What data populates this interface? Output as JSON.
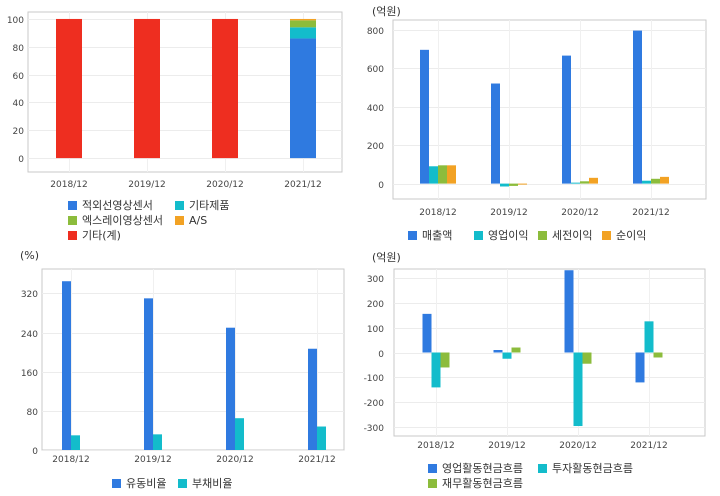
{
  "chart_data": [
    {
      "type": "bar",
      "stacked": true,
      "categories": [
        "2018/12",
        "2019/12",
        "2020/12",
        "2021/12"
      ],
      "ylim": [
        -10,
        105
      ],
      "yticks": [
        0,
        20,
        40,
        60,
        80,
        100
      ],
      "grid": true,
      "legend_position": "bottom",
      "series": [
        {
          "name": "적외선영상센서",
          "color": "#2f7ae0",
          "values": [
            0,
            0,
            0,
            86
          ]
        },
        {
          "name": "기타제품",
          "color": "#13bccb",
          "values": [
            0,
            0,
            0,
            8
          ]
        },
        {
          "name": "엑스레이영상센서",
          "color": "#8cbc3c",
          "values": [
            0,
            0,
            0,
            5
          ]
        },
        {
          "name": "A/S",
          "color": "#f2a224",
          "values": [
            0,
            0,
            0,
            1
          ]
        },
        {
          "name": "기타(계)",
          "color": "#ee2e20",
          "values": [
            100,
            100,
            100,
            0
          ]
        }
      ]
    },
    {
      "type": "bar",
      "unit": "(억원)",
      "categories": [
        "2018/12",
        "2019/12",
        "2020/12",
        "2021/12"
      ],
      "ylim": [
        -80,
        850
      ],
      "yticks": [
        0,
        200,
        400,
        600,
        800
      ],
      "grid": true,
      "legend_position": "bottom",
      "series": [
        {
          "name": "매출액",
          "color": "#2f7ae0",
          "values": [
            695,
            520,
            665,
            795
          ]
        },
        {
          "name": "영업이익",
          "color": "#13bccb",
          "values": [
            90,
            -15,
            5,
            15
          ]
        },
        {
          "name": "세전이익",
          "color": "#8cbc3c",
          "values": [
            95,
            -12,
            12,
            25
          ]
        },
        {
          "name": "순이익",
          "color": "#f2a224",
          "values": [
            95,
            0,
            30,
            35
          ]
        }
      ]
    },
    {
      "type": "bar",
      "unit": "(%)",
      "categories": [
        "2018/12",
        "2019/12",
        "2020/12",
        "2021/12"
      ],
      "ylim": [
        0,
        370
      ],
      "yticks": [
        0,
        80,
        160,
        240,
        320
      ],
      "grid": true,
      "legend_position": "bottom",
      "series": [
        {
          "name": "유동비율",
          "color": "#2f7ae0",
          "values": [
            345,
            310,
            250,
            207
          ]
        },
        {
          "name": "부채비율",
          "color": "#13bccb",
          "values": [
            30,
            32,
            65,
            48
          ]
        }
      ]
    },
    {
      "type": "bar",
      "unit": "(억원)",
      "categories": [
        "2018/12",
        "2019/12",
        "2020/12",
        "2021/12"
      ],
      "ylim": [
        -335,
        335
      ],
      "yticks": [
        -300,
        -200,
        -100,
        0,
        100,
        200,
        300
      ],
      "grid": true,
      "legend_position": "bottom",
      "series": [
        {
          "name": "영업활동현금흐름",
          "color": "#2f7ae0",
          "values": [
            155,
            10,
            330,
            -120
          ]
        },
        {
          "name": "투자활동현금흐름",
          "color": "#13bccb",
          "values": [
            -140,
            -25,
            -295,
            125
          ]
        },
        {
          "name": "재무활동현금흐름",
          "color": "#8cbc3c",
          "values": [
            -60,
            20,
            -45,
            -20
          ]
        }
      ]
    }
  ]
}
